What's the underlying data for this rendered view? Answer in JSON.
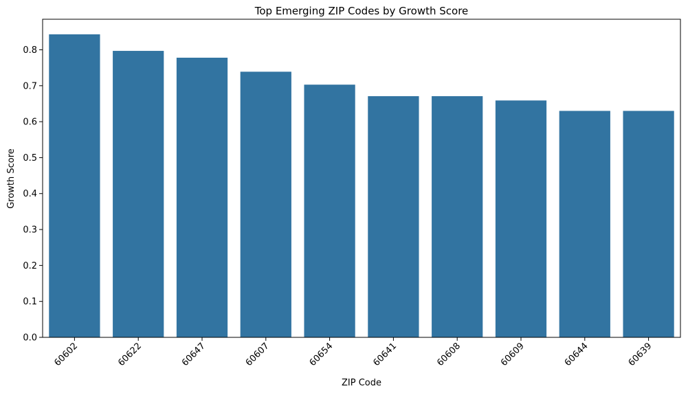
{
  "chart_data": {
    "type": "bar",
    "title": "Top Emerging ZIP Codes by Growth Score",
    "xlabel": "ZIP Code",
    "ylabel": "Growth Score",
    "categories": [
      "60602",
      "60622",
      "60647",
      "60607",
      "60654",
      "60641",
      "60608",
      "60609",
      "60644",
      "60639"
    ],
    "values": [
      0.843,
      0.797,
      0.778,
      0.739,
      0.703,
      0.671,
      0.671,
      0.659,
      0.63,
      0.63
    ],
    "ylim": [
      0,
      0.885
    ],
    "yticks": [
      "0.0",
      "0.1",
      "0.2",
      "0.3",
      "0.4",
      "0.5",
      "0.6",
      "0.7",
      "0.8"
    ],
    "grid": false,
    "legend": "none",
    "bar_color": "#3274a1"
  }
}
